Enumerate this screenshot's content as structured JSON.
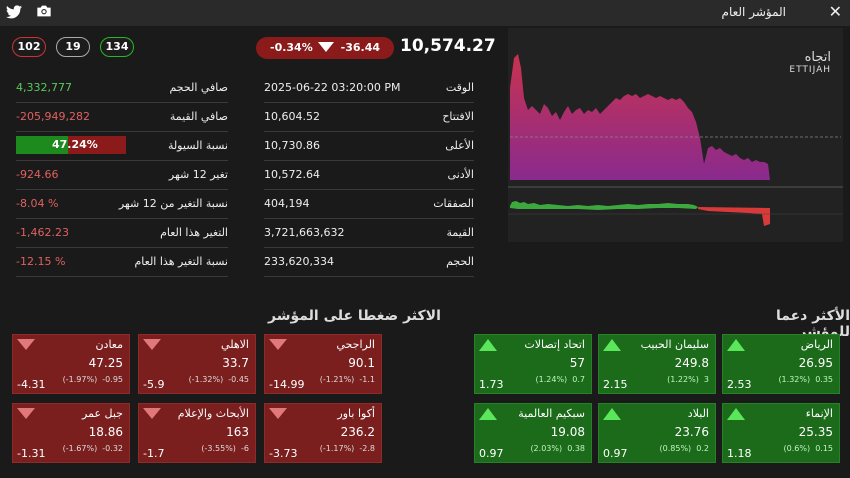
{
  "header": {
    "title": "المؤشر العام"
  },
  "breadth": {
    "declines": "102",
    "unchanged": "19",
    "advances": "134"
  },
  "index": {
    "value": "10,574.27",
    "change_pct": "-0.34%",
    "change_abs": "-36.44"
  },
  "left_stats": [
    {
      "label": "صافي الحجم",
      "value": "4,332,777",
      "tone": "pos"
    },
    {
      "label": "صافي القيمة",
      "value": "-205,949,282",
      "tone": "neg"
    },
    {
      "label": "نسبة السيولة",
      "value": "47.24%",
      "tone": "bar",
      "fraction": 0.4724
    },
    {
      "label": "تغير 12 شهر",
      "value": "-924.66",
      "tone": "neg"
    },
    {
      "label": "نسبة التغير من 12 شهر",
      "value": "-8.04 %",
      "tone": "neg"
    },
    {
      "label": "التغير هذا العام",
      "value": "-1,462.23",
      "tone": "neg"
    },
    {
      "label": "نسبة التغير هذا العام",
      "value": "-12.15 %",
      "tone": "neg"
    }
  ],
  "mid_stats": [
    {
      "label": "الوقت",
      "value": "2025-06-22 03:20:00 PM"
    },
    {
      "label": "الافتتاح",
      "value": "10,604.52"
    },
    {
      "label": "الأعلى",
      "value": "10,730.86"
    },
    {
      "label": "الأدنى",
      "value": "10,572.64"
    },
    {
      "label": "الصفقات",
      "value": "404,194"
    },
    {
      "label": "القيمة",
      "value": "3,721,663,632"
    },
    {
      "label": "الحجم",
      "value": "233,620,334"
    }
  ],
  "logo": {
    "ar": "اتجاه",
    "en": "ETTIJAH"
  },
  "sections": {
    "pressure_title": "الاكثر ضغطا على المؤشر",
    "support_title": "الأكثر دعما للمؤشر"
  },
  "pressure": [
    {
      "name": "الراجحي",
      "price": "90.1",
      "change": "-1.1",
      "pct": "(-1.21%)",
      "contrib": "-14.99"
    },
    {
      "name": "الاهلي",
      "price": "33.7",
      "change": "-0.45",
      "pct": "(-1.32%)",
      "contrib": "-5.9"
    },
    {
      "name": "معادن",
      "price": "47.25",
      "change": "-0.95",
      "pct": "(-1.97%)",
      "contrib": "-4.31"
    },
    {
      "name": "أكوا باور",
      "price": "236.2",
      "change": "-2.8",
      "pct": "(-1.17%)",
      "contrib": "-3.73"
    },
    {
      "name": "الأبحاث والإعلام",
      "price": "163",
      "change": "-6",
      "pct": "(-3.55%)",
      "contrib": "-1.7"
    },
    {
      "name": "جبل عمر",
      "price": "18.86",
      "change": "-0.32",
      "pct": "(-1.67%)",
      "contrib": "-1.31"
    }
  ],
  "support": [
    {
      "name": "الرياض",
      "price": "26.95",
      "change": "0.35",
      "pct": "(1.32%)",
      "contrib": "2.53"
    },
    {
      "name": "سليمان الحبيب",
      "price": "249.8",
      "change": "3",
      "pct": "(1.22%)",
      "contrib": "2.15"
    },
    {
      "name": "اتحاد إتصالات",
      "price": "57",
      "change": "0.7",
      "pct": "(1.24%)",
      "contrib": "1.73"
    },
    {
      "name": "الإنماء",
      "price": "25.35",
      "change": "0.15",
      "pct": "(0.6%)",
      "contrib": "1.18"
    },
    {
      "name": "البلاد",
      "price": "23.76",
      "change": "0.2",
      "pct": "(0.85%)",
      "contrib": "0.97"
    },
    {
      "name": "سبكيم العالمية",
      "price": "19.08",
      "change": "0.38",
      "pct": "(2.03%)",
      "contrib": "0.97"
    }
  ],
  "colors": {
    "negative": "#e06060",
    "positive": "#59c95b",
    "card_red": "#7a1e1e",
    "card_green": "#1b6b1b"
  }
}
